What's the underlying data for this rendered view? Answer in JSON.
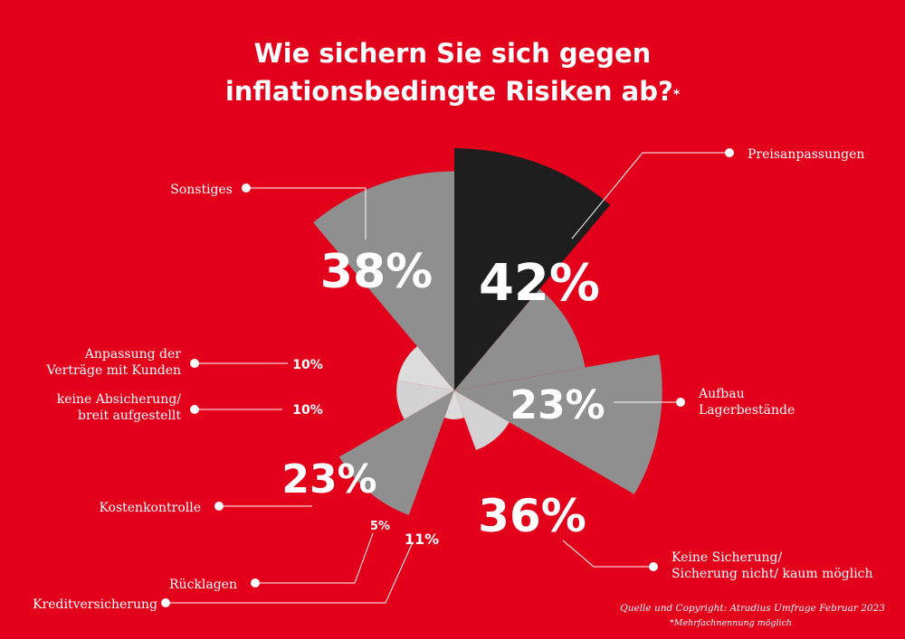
{
  "title_line1": "Wie sichern Sie sich gegen",
  "title_line2": "inflationsbedingte Risiken ab?",
  "title_marker": "*",
  "footer": {
    "source": "Quelle und Copyright: Atradius Umfrage Februar 2023",
    "note": "*Mehrfachnennung möglich"
  },
  "colors": {
    "background": "#e3001b",
    "dark": "#1e1e1e",
    "mid_gray": "#8f8f8f",
    "light_gray": "#d2d2d2",
    "lighter_gray": "#dcdcdc"
  },
  "chart_data": {
    "type": "pie",
    "title": "Wie sichern Sie sich gegen inflationsbedingte Risiken ab?*",
    "note": "Mehrfachnennung möglich; slice radius scales with value",
    "slices": [
      {
        "label": "Preisanpassungen",
        "value": 42,
        "display": "42%",
        "color": "#1e1e1e"
      },
      {
        "label": "Aufbau Lagerbestände",
        "value": 23,
        "display": "23%",
        "color": "#8f8f8f"
      },
      {
        "label": "Keine Sicherung/ Sicherung nicht/ kaum möglich",
        "value": 36,
        "display": "36%",
        "color": "#8f8f8f"
      },
      {
        "label": "Kreditversicherung",
        "value": 11,
        "display": "11%",
        "color": "#d2d2d2"
      },
      {
        "label": "Rücklagen",
        "value": 5,
        "display": "5%",
        "color": "#dcdcdc"
      },
      {
        "label": "Kostenkontrolle",
        "value": 23,
        "display": "23%",
        "color": "#8f8f8f"
      },
      {
        "label": "keine Absicherung/ breit aufgestellt",
        "value": 10,
        "display": "10%",
        "color": "#d2d2d2"
      },
      {
        "label": "Anpassung der Verträge mit Kunden",
        "value": 10,
        "display": "10%",
        "color": "#dcdcdc"
      },
      {
        "label": "Sonstiges",
        "value": 38,
        "display": "38%",
        "color": "#8f8f8f"
      }
    ]
  }
}
